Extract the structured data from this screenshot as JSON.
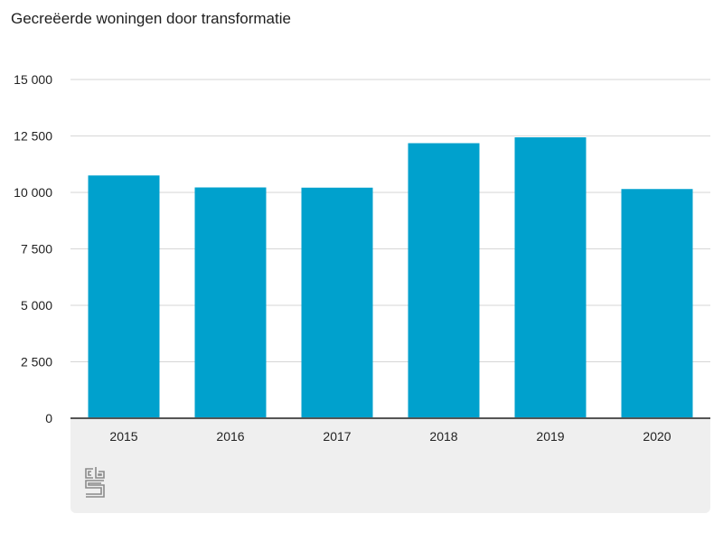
{
  "title": "Gecreëerde woningen door transformatie",
  "colors": {
    "bar": "#00a1cd",
    "grid": "#d6d6d6",
    "axis": "#555555",
    "footer": "#efefef"
  },
  "logo": {
    "icon": "cbs-logo-icon"
  },
  "chart_data": {
    "type": "bar",
    "title": "Gecreëerde woningen door transformatie",
    "categories": [
      "2015",
      "2016",
      "2017",
      "2018",
      "2019",
      "2020"
    ],
    "values": [
      10750,
      10220,
      10210,
      12180,
      12440,
      10150
    ],
    "ylim": [
      0,
      15000
    ],
    "yticks": [
      0,
      2500,
      5000,
      7500,
      10000,
      12500,
      15000
    ],
    "ytick_labels": [
      "0",
      "2 500",
      "5 000",
      "7 500",
      "10 000",
      "12 500",
      "15 000"
    ],
    "xlabel": "",
    "ylabel": "",
    "grid": true,
    "legend": "none"
  }
}
